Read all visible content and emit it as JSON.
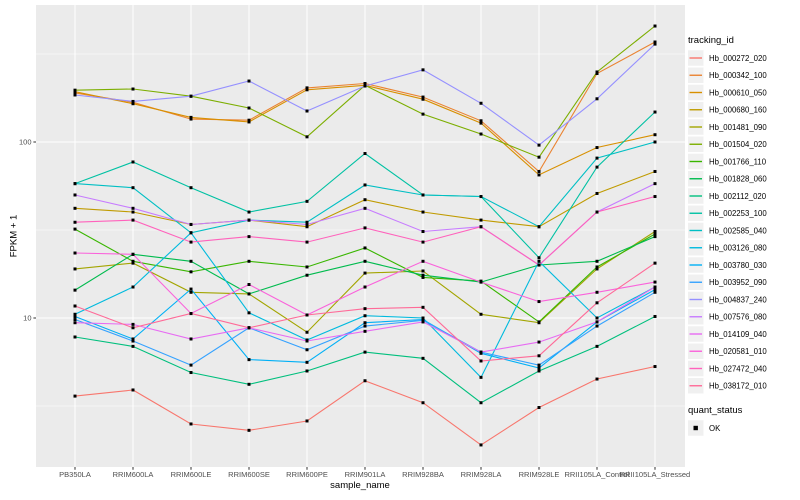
{
  "chart_data": {
    "type": "line",
    "title": "",
    "xlabel": "sample_name",
    "ylabel": "FPKM + 1",
    "y_scale": "log10",
    "ylim": [
      1.4,
      600
    ],
    "y_tick_values": [
      10,
      100
    ],
    "y_tick_labels": [
      "10",
      "100"
    ],
    "y_minor_gridlines": [
      3.162,
      31.62,
      316.2
    ],
    "grid": "on",
    "panel_bg": "#EBEBEB",
    "grid_color": "#FFFFFF",
    "tick_label_color": "#4D4D4D",
    "point_marker": "black-square",
    "legend_position": "right",
    "legend_title": "tracking_id",
    "quant_legend": {
      "title": "quant_status",
      "items": [
        {
          "label": "OK",
          "marker": "black-square"
        }
      ]
    },
    "categories": [
      "PB350LA",
      "RRIM600LA",
      "RRIM600LE",
      "RRIM600SE",
      "RRIM600PE",
      "RRIM901LA",
      "RRIM928BA",
      "RRIM928LA",
      "RRIM928LE",
      "RRII105LA_Control",
      "RRII105LA_Stressed"
    ],
    "series": [
      {
        "name": "Hb_000272_020",
        "color": "#F8766D",
        "values": [
          3.6,
          3.9,
          2.5,
          2.3,
          2.6,
          4.4,
          3.3,
          1.9,
          3.1,
          4.5,
          5.3
        ]
      },
      {
        "name": "Hb_000342_100",
        "color": "#EA8331",
        "values": [
          190,
          168,
          135,
          133,
          203,
          215,
          180,
          132,
          68,
          245,
          370
        ]
      },
      {
        "name": "Hb_000610_050",
        "color": "#D89000",
        "values": [
          193,
          165,
          138,
          130,
          198,
          210,
          175,
          128,
          65,
          93,
          110
        ]
      },
      {
        "name": "Hb_000680_160",
        "color": "#C09B00",
        "values": [
          42,
          40,
          34,
          36,
          33,
          47,
          40,
          36,
          33,
          51,
          68
        ]
      },
      {
        "name": "Hb_001481_090",
        "color": "#A3A500",
        "values": [
          19,
          20.5,
          14,
          13.7,
          8.3,
          18,
          18.5,
          10.5,
          9.4,
          19,
          31
        ]
      },
      {
        "name": "Hb_001504_020",
        "color": "#7CAE00",
        "values": [
          197,
          200,
          182,
          156,
          107,
          210,
          144,
          111,
          82,
          250,
          456
        ]
      },
      {
        "name": "Hb_001766_110",
        "color": "#39B600",
        "values": [
          32,
          21,
          18.3,
          21,
          19.5,
          25,
          17,
          16.2,
          9.5,
          19.5,
          30
        ]
      },
      {
        "name": "Hb_001828_060",
        "color": "#00BB4E",
        "values": [
          14.4,
          23,
          21,
          13.7,
          17.5,
          21,
          17.5,
          16,
          20,
          21,
          29
        ]
      },
      {
        "name": "Hb_002112_020",
        "color": "#00BF7D",
        "values": [
          7.8,
          6.9,
          4.9,
          4.2,
          5.0,
          6.4,
          5.9,
          3.3,
          5.0,
          6.9,
          10.2
        ]
      },
      {
        "name": "Hb_002253_100",
        "color": "#00C1A3",
        "values": [
          58,
          77,
          55,
          40,
          46,
          86,
          50,
          49,
          22,
          72,
          148
        ]
      },
      {
        "name": "Hb_002585_040",
        "color": "#00BFC4",
        "values": [
          58,
          55,
          30.5,
          36,
          35,
          57,
          50,
          49,
          33,
          81,
          100
        ]
      },
      {
        "name": "Hb_003126_080",
        "color": "#00BADE",
        "values": [
          10.5,
          15,
          30.5,
          10.7,
          7.5,
          10.3,
          10,
          4.6,
          21,
          10,
          15
        ]
      },
      {
        "name": "Hb_003780_030",
        "color": "#00B0F6",
        "values": [
          10.2,
          7.6,
          14.6,
          5.8,
          5.6,
          9.4,
          9.8,
          6.3,
          5.2,
          9.5,
          14.5
        ]
      },
      {
        "name": "Hb_003952_090",
        "color": "#35A2FF",
        "values": [
          9.8,
          7.4,
          5.4,
          8.8,
          6.6,
          9.0,
          9.7,
          6.4,
          5.4,
          9.0,
          14
        ]
      },
      {
        "name": "Hb_004837_240",
        "color": "#9590FF",
        "values": [
          185,
          170,
          182,
          222,
          150,
          208,
          257,
          166,
          96,
          176,
          360
        ]
      },
      {
        "name": "Hb_007576_080",
        "color": "#C77CFF",
        "values": [
          50,
          42,
          34,
          36,
          34,
          42,
          31,
          33,
          20,
          40,
          58
        ]
      },
      {
        "name": "Hb_014109_040",
        "color": "#E76BF3",
        "values": [
          9.4,
          9.2,
          7.6,
          8.8,
          7.4,
          8.4,
          9.5,
          6.4,
          7.3,
          9.5,
          15
        ]
      },
      {
        "name": "Hb_020581_010",
        "color": "#FA62DB",
        "values": [
          23.4,
          23,
          10.6,
          15.5,
          10.4,
          15,
          21,
          16,
          12.4,
          14,
          16
        ]
      },
      {
        "name": "Hb_027472_040",
        "color": "#FF62BC",
        "values": [
          35,
          36,
          27,
          29,
          27,
          32.5,
          27,
          33,
          20,
          40,
          49
        ]
      },
      {
        "name": "Hb_038172_010",
        "color": "#FF6A98",
        "values": [
          11.7,
          8.8,
          10.6,
          8.8,
          10.4,
          11.3,
          11.5,
          5.7,
          6.1,
          12.2,
          20.5
        ]
      }
    ]
  },
  "labels": {
    "y_axis": "FPKM + 1",
    "x_axis": "sample_name",
    "legend_tracking": "tracking_id",
    "legend_quant": "quant_status",
    "quant_ok": "OK"
  }
}
